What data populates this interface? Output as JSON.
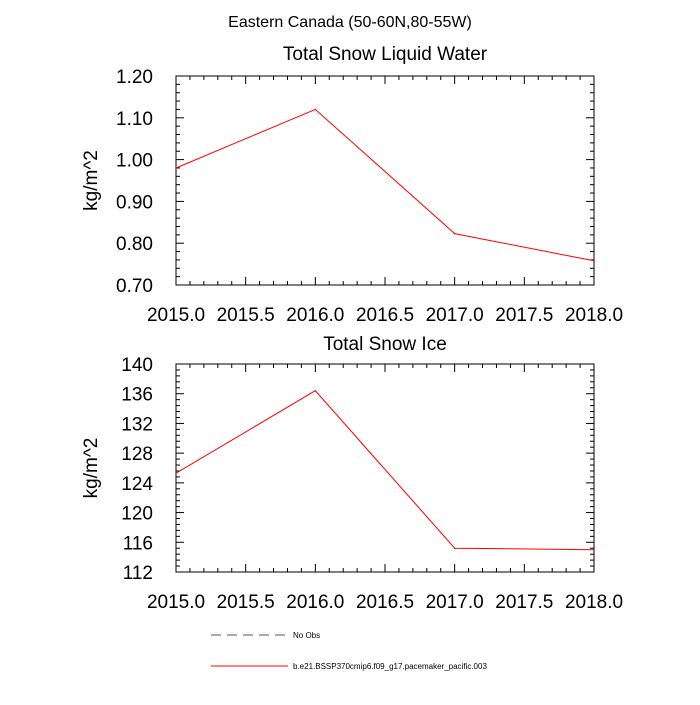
{
  "figure_title": "Eastern Canada (50-60N,80-55W)",
  "chart_data": [
    {
      "type": "line",
      "title": "Total Snow Liquid Water",
      "xlabel": "",
      "ylabel": "kg/m^2",
      "xlim": [
        2015.0,
        2018.0
      ],
      "ylim": [
        0.7,
        1.2
      ],
      "x_ticks": [
        "2015.0",
        "2015.5",
        "2016.0",
        "2016.5",
        "2017.0",
        "2017.5",
        "2018.0"
      ],
      "y_ticks": [
        "0.70",
        "0.80",
        "0.90",
        "1.00",
        "1.10",
        "1.20"
      ],
      "series": [
        {
          "name": "b.e21.BSSP370cmip6.f09_g17.pacemaker_pacific.003",
          "color": "#ff0000",
          "x": [
            2015.0,
            2016.0,
            2017.0,
            2018.0
          ],
          "values": [
            0.98,
            1.12,
            0.823,
            0.758
          ]
        }
      ]
    },
    {
      "type": "line",
      "title": "Total Snow Ice",
      "xlabel": "",
      "ylabel": "kg/m^2",
      "xlim": [
        2015.0,
        2018.0
      ],
      "ylim": [
        112,
        140
      ],
      "x_ticks": [
        "2015.0",
        "2015.5",
        "2016.0",
        "2016.5",
        "2017.0",
        "2017.5",
        "2018.0"
      ],
      "y_ticks": [
        "112",
        "116",
        "120",
        "124",
        "128",
        "132",
        "136",
        "140"
      ],
      "series": [
        {
          "name": "b.e21.BSSP370cmip6.f09_g17.pacemaker_pacific.003",
          "color": "#ff0000",
          "x": [
            2015.0,
            2016.0,
            2017.0,
            2018.0
          ],
          "values": [
            125.3,
            136.4,
            115.2,
            115.0
          ]
        }
      ]
    }
  ],
  "legend": [
    {
      "label": "No Obs",
      "color": "#5050a0",
      "style": "dashed"
    },
    {
      "label": "b.e21.BSSP370cmip6.f09_g17.pacemaker_pacific.003",
      "color": "#ff0000",
      "style": "solid"
    }
  ]
}
